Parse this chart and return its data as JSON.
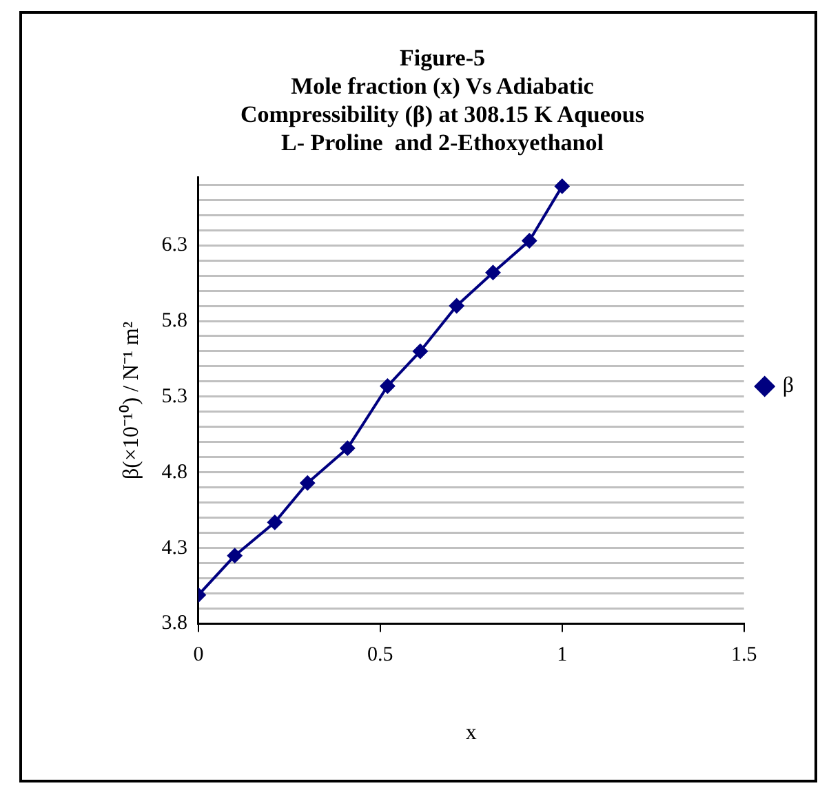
{
  "chart_data": {
    "type": "line",
    "title": "Figure-5\nMole fraction (x) Vs Adiabatic\nCompressibility (β) at 308.15 K Aqueous\nL- Proline  and 2-Ethoxyethanol",
    "xlabel": "x",
    "ylabel": "β(×10⁻¹⁰) / N⁻¹ m²",
    "x": [
      0,
      0.1,
      0.21,
      0.3,
      0.41,
      0.52,
      0.61,
      0.71,
      0.81,
      0.91,
      1
    ],
    "series": [
      {
        "name": "β",
        "color": "#000080",
        "values": [
          3.99,
          4.25,
          4.47,
          4.73,
          4.96,
          5.37,
          5.6,
          5.9,
          6.12,
          6.33,
          6.69
        ]
      }
    ],
    "xlim": [
      0,
      1.5
    ],
    "xticks": [
      0,
      0.5,
      1,
      1.5
    ],
    "ylim": [
      3.8,
      6.75
    ],
    "yticks": [
      3.8,
      {
        "value": 3.9,
        "label": null
      },
      {
        "value": 4.0,
        "label": null
      },
      {
        "value": 4.1,
        "label": null
      },
      {
        "value": 4.2,
        "label": null
      },
      4.3,
      {
        "value": 4.4,
        "label": null
      },
      {
        "value": 4.5,
        "label": null
      },
      {
        "value": 4.6,
        "label": null
      },
      {
        "value": 4.7,
        "label": null
      },
      4.8,
      {
        "value": 4.9,
        "label": null
      },
      {
        "value": 5.0,
        "label": null
      },
      {
        "value": 5.1,
        "label": null
      },
      {
        "value": 5.2,
        "label": null
      },
      5.3,
      {
        "value": 5.4,
        "label": null
      },
      {
        "value": 5.5,
        "label": null
      },
      {
        "value": 5.6,
        "label": null
      },
      {
        "value": 5.7,
        "label": null
      },
      5.8,
      {
        "value": 5.9,
        "label": null
      },
      {
        "value": 6.0,
        "label": null
      },
      {
        "value": 6.1,
        "label": null
      },
      {
        "value": 6.2,
        "label": null
      },
      6.3,
      {
        "value": 6.4,
        "label": null
      },
      {
        "value": 6.5,
        "label": null
      },
      {
        "value": 6.6,
        "label": null
      },
      {
        "value": 6.7,
        "label": null
      }
    ],
    "grid": "y",
    "legend": "right",
    "marker": "diamond",
    "line_style": "solid"
  }
}
